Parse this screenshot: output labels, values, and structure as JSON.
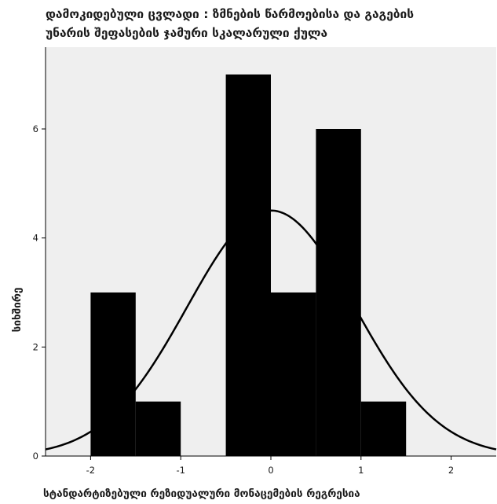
{
  "chart_data": {
    "type": "bar",
    "title_lines": [
      "დამოკიდებული ცვლადი : ზმნების წარმოებისა და გაგების",
      "უნარის შეფასების ჯამური სკალარული ქულა"
    ],
    "xlabel": "სტანდარტიზებული რეზიდუალური მონაცემების რეგრესია",
    "ylabel": "სიხშირე",
    "xlim": [
      -2.5,
      2.5
    ],
    "ylim": [
      0,
      7.5
    ],
    "x_ticks": [
      -2,
      -1,
      0,
      1,
      2
    ],
    "y_ticks": [
      0,
      2,
      4,
      6
    ],
    "bin_width": 0.5,
    "bins": [
      {
        "start": -2.0,
        "end": -1.5,
        "count": 3
      },
      {
        "start": -1.5,
        "end": -1.0,
        "count": 1
      },
      {
        "start": -1.0,
        "end": -0.5,
        "count": 0
      },
      {
        "start": -0.5,
        "end": 0.0,
        "count": 7
      },
      {
        "start": 0.0,
        "end": 0.5,
        "count": 3
      },
      {
        "start": 0.5,
        "end": 1.0,
        "count": 6
      },
      {
        "start": 1.0,
        "end": 1.5,
        "count": 1
      }
    ],
    "normal_curve": {
      "mean": 0.0,
      "std_dev": 0.93,
      "n": 21
    },
    "bar_color": "#000000",
    "plot_background": "#efefef"
  }
}
